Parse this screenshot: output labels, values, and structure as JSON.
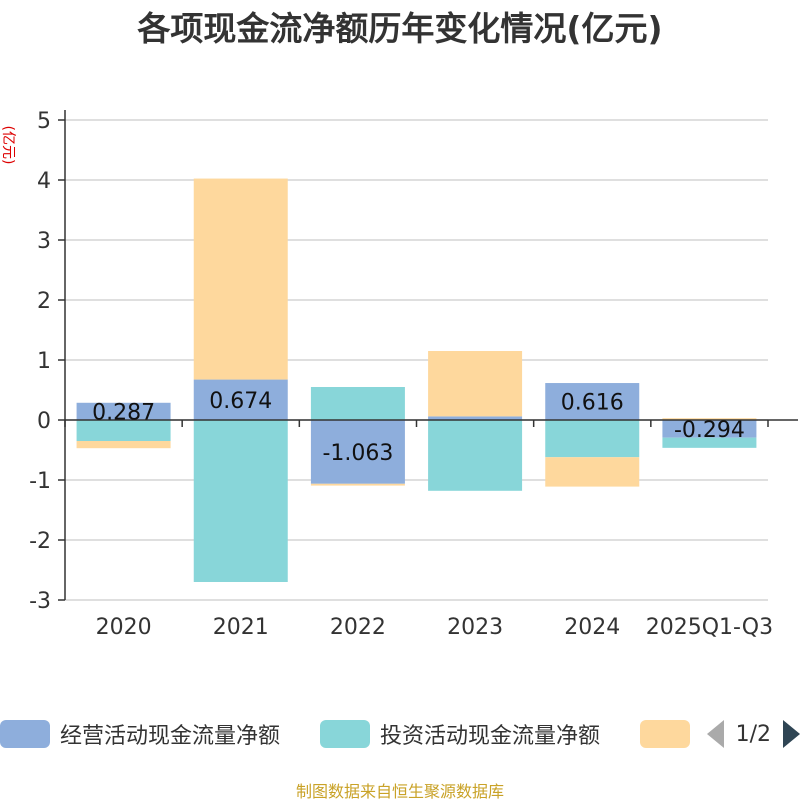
{
  "chart_data": {
    "type": "bar",
    "stacked": true,
    "title": "各项现金流净额历年变化情况(亿元)",
    "ylabel": "(亿元)",
    "xlabel": "",
    "ylim": [
      -3,
      5
    ],
    "yticks": [
      5,
      4,
      3,
      2,
      1,
      0,
      -1,
      -2,
      -3
    ],
    "categories": [
      "2020",
      "2021",
      "2022",
      "2023",
      "2024",
      "2025Q1-Q3"
    ],
    "series": [
      {
        "name": "经营活动现金流量净额",
        "color": "#8eaedc",
        "values": [
          0.287,
          0.674,
          -1.063,
          0.06,
          0.616,
          -0.294
        ],
        "labels": [
          "0.287",
          "0.674",
          "-1.063",
          "",
          "0.616",
          "-0.294"
        ]
      },
      {
        "name": "投资活动现金流量净额",
        "color": "#88d6d9",
        "values": [
          -0.35,
          -2.7,
          0.55,
          -1.18,
          -0.62,
          -0.17
        ]
      },
      {
        "name": "",
        "color": "#fed89d",
        "values": [
          -0.12,
          3.35,
          -0.03,
          1.09,
          -0.49,
          0.03
        ]
      }
    ]
  },
  "legend": {
    "items": [
      {
        "label": "经营活动现金流量净额",
        "color": "#8eaedc"
      },
      {
        "label": "投资活动现金流量净额",
        "color": "#88d6d9"
      },
      {
        "label": "",
        "color": "#fed89d"
      }
    ],
    "page": "1/2"
  },
  "footer": "制图数据来自恒生聚源数据库"
}
